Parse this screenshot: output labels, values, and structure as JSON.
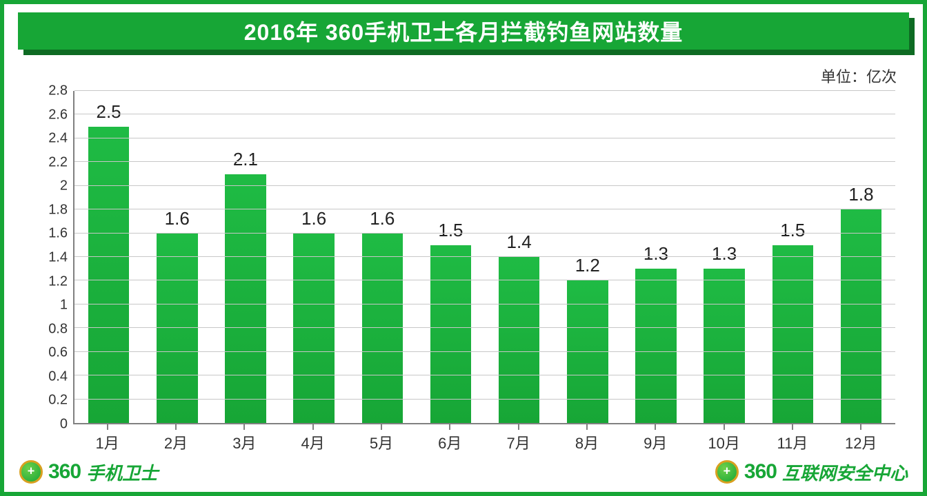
{
  "title": "2016年 360手机卫士各月拦截钓鱼网站数量",
  "unit_label": "单位：亿次",
  "chart": {
    "type": "bar",
    "categories": [
      "1月",
      "2月",
      "3月",
      "4月",
      "5月",
      "6月",
      "7月",
      "8月",
      "9月",
      "10月",
      "11月",
      "12月"
    ],
    "values": [
      2.5,
      1.6,
      2.1,
      1.6,
      1.6,
      1.5,
      1.4,
      1.2,
      1.3,
      1.3,
      1.5,
      1.8
    ],
    "value_labels": [
      "2.5",
      "1.6",
      "2.1",
      "1.6",
      "1.6",
      "1.5",
      "1.4",
      "1.2",
      "1.3",
      "1.3",
      "1.5",
      "1.8"
    ],
    "ylim": [
      0,
      2.8
    ],
    "ytick_step": 0.2,
    "yticks": [
      "0",
      "0.2",
      "0.4",
      "0.6",
      "0.8",
      "1",
      "1.2",
      "1.4",
      "1.6",
      "1.8",
      "2",
      "2.2",
      "2.4",
      "2.6",
      "2.8"
    ],
    "bar_color": "#17a636",
    "bar_gradient_top": "#1fbb44",
    "grid_color": "#c7c7c7",
    "axis_color": "#808080",
    "label_color": "#222222",
    "label_fontsize": 26,
    "tick_fontsize": 20,
    "category_fontsize": 22,
    "bar_width": 0.6,
    "background_color": "#ffffff"
  },
  "footer": {
    "left_num": "360",
    "left_text": "手机卫士",
    "right_num": "360",
    "right_text": "互联网安全中心"
  },
  "colors": {
    "brand_green": "#17a636",
    "dark_green": "#0e6b23",
    "border_green": "#17a636"
  }
}
